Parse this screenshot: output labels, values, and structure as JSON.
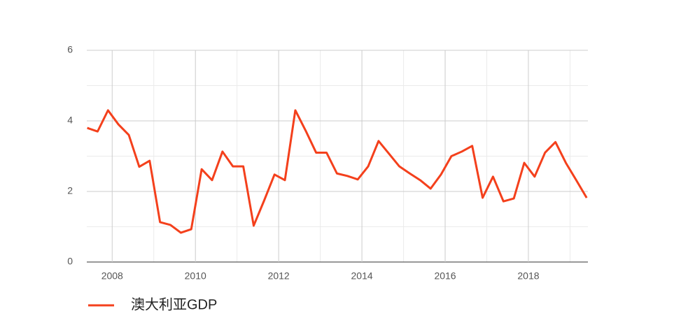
{
  "chart_data": {
    "type": "line",
    "x": [
      2007.4,
      2007.65,
      2007.9,
      2008.15,
      2008.4,
      2008.65,
      2008.9,
      2009.15,
      2009.4,
      2009.65,
      2009.9,
      2010.15,
      2010.4,
      2010.65,
      2010.9,
      2011.15,
      2011.4,
      2011.65,
      2011.9,
      2012.15,
      2012.4,
      2012.65,
      2012.9,
      2013.15,
      2013.4,
      2013.65,
      2013.9,
      2014.15,
      2014.4,
      2014.65,
      2014.9,
      2015.15,
      2015.4,
      2015.65,
      2015.9,
      2016.15,
      2016.4,
      2016.65,
      2016.9,
      2017.15,
      2017.4,
      2017.65,
      2017.9,
      2018.15,
      2018.4,
      2018.65,
      2018.9,
      2019.15,
      2019.4
    ],
    "series": [
      {
        "name": "澳大利亚GDP",
        "color": "#f4401c",
        "values": [
          3.8,
          3.7,
          4.3,
          3.9,
          3.6,
          2.7,
          2.87,
          1.13,
          1.05,
          0.83,
          0.93,
          2.63,
          2.32,
          3.13,
          2.71,
          2.71,
          1.03,
          1.74,
          2.48,
          2.32,
          4.3,
          3.72,
          3.1,
          3.1,
          2.51,
          2.44,
          2.34,
          2.71,
          3.43,
          3.07,
          2.71,
          2.51,
          2.32,
          2.08,
          2.48,
          3.0,
          3.13,
          3.29,
          1.82,
          2.42,
          1.72,
          1.8,
          2.81,
          2.42,
          3.1,
          3.4,
          2.81,
          2.32,
          1.82
        ]
      }
    ],
    "xlim": [
      2007.39,
      2019.43
    ],
    "xticks": [
      2008,
      2010,
      2012,
      2014,
      2016,
      2018
    ],
    "xminor": [
      2009,
      2011,
      2013,
      2015,
      2017,
      2019
    ],
    "ylim": [
      0,
      6
    ],
    "yticks": [
      0,
      2,
      4,
      6
    ],
    "yminor": [
      1,
      3,
      5
    ],
    "grid": true
  }
}
